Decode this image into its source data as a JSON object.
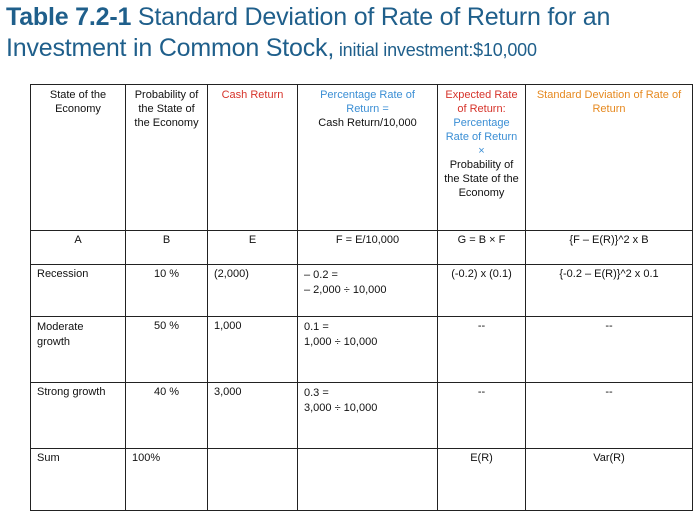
{
  "title": {
    "bold_part": "Table 7.2-1",
    "rest": " Standard Deviation of Rate of Return for an Investment in Common Stock,",
    "small_part": " initial investment:$10,000"
  },
  "headers": {
    "state": "State of the Economy",
    "probability": "Probability of the State of the Economy",
    "cash_return": "Cash Return",
    "pct_rate_line1": "Percentage Rate of Return =",
    "pct_rate_line2": "Cash Return/10,000",
    "expected_part1": "Expected Rate of Return:",
    "expected_part2": "Percentage Rate of Return ×",
    "expected_part3": "Probability of the State of the Economy",
    "std_dev": "Standard Deviation of Rate of Return"
  },
  "key_row": [
    "A",
    "B",
    "E",
    "F = E/10,000",
    "G = B × F",
    "{F – E(R)}^2 x B"
  ],
  "rows": [
    {
      "state": "Recession",
      "probability": "10 %",
      "cash": "(2,000)",
      "pct_line1": "– 0.2 =",
      "pct_line2": "– 2,000 ÷ 10,000",
      "expected": "(-0.2) x (0.1)",
      "std": "{-0.2 – E(R)}^2 x 0.1"
    },
    {
      "state": "Moderate growth",
      "probability": "50 %",
      "cash": "1,000",
      "pct_line1": "0.1 =",
      "pct_line2": "1,000 ÷ 10,000",
      "expected": "--",
      "std": "--"
    },
    {
      "state": "Strong growth",
      "probability": "40 %",
      "cash": "3,000",
      "pct_line1": "0.3 =",
      "pct_line2": "3,000 ÷ 10,000",
      "expected": "--",
      "std": "--"
    }
  ],
  "sum_row": {
    "label": "Sum",
    "probability": "100%",
    "expected": "E(R)",
    "std": "Var(R)"
  },
  "colors": {
    "title": "#1f5f8b",
    "cash_header": "#d6332a",
    "pct_header": "#3a8ed4",
    "expected_header_red": "#d6332a",
    "expected_header_blue": "#3a8ed4",
    "std_header": "#e6891f"
  }
}
